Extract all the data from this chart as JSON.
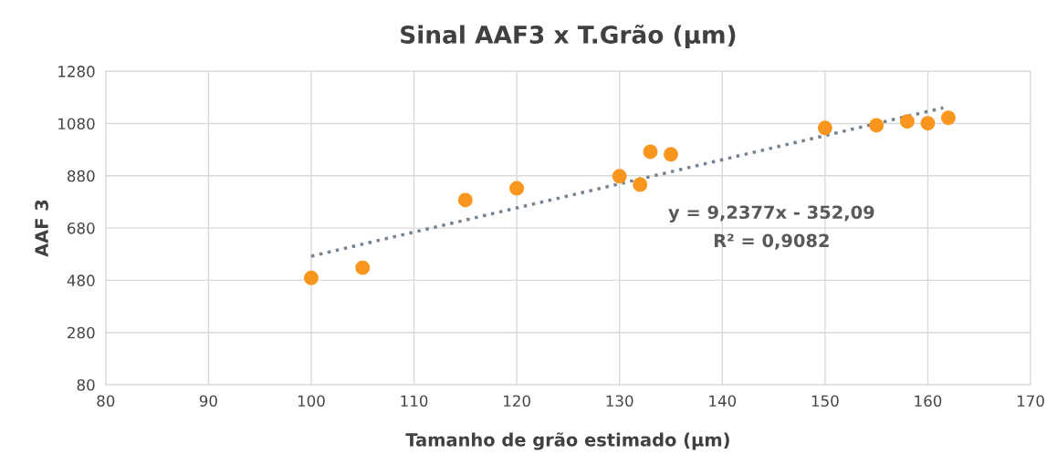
{
  "chart_data": {
    "type": "scatter",
    "title": "Sinal AAF3 x T.Grão (µm)",
    "xlabel": "Tamanho de grão estimado (µm)",
    "ylabel": "AAF 3",
    "xlim": [
      80,
      170
    ],
    "xticks": [
      80,
      90,
      100,
      110,
      120,
      130,
      140,
      150,
      160,
      170
    ],
    "ylim": [
      80,
      1280
    ],
    "yticks": [
      80,
      280,
      480,
      680,
      880,
      1080,
      1280
    ],
    "grid": true,
    "marker": "circle",
    "series": [
      {
        "color": "#f8961e",
        "x": [
          100,
          105,
          115,
          120,
          130,
          132,
          133,
          135,
          150,
          155,
          158,
          160,
          162
        ],
        "values": [
          489,
          528,
          787,
          832,
          878,
          846,
          972,
          962,
          1063,
          1073,
          1088,
          1081,
          1102
        ]
      },
      {
        "type": "line",
        "color": "#75828f",
        "line_style": "dotted",
        "marker": "none",
        "x": [
          100,
          161.5
        ],
        "values": [
          572,
          1140
        ]
      }
    ],
    "annotations": [
      "y = 9,2377x - 352,09",
      "R² = 0,9082"
    ]
  }
}
